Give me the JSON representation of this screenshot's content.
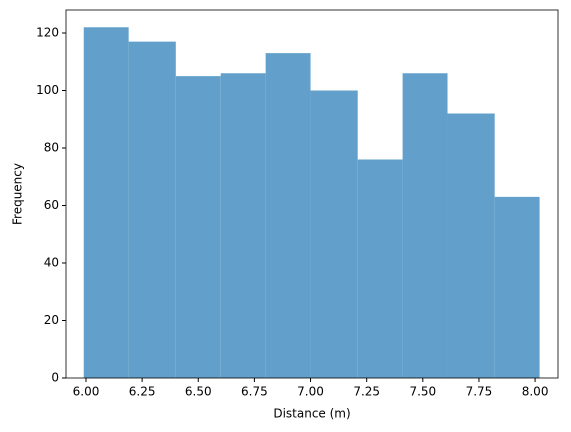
{
  "chart_data": {
    "type": "histogram",
    "xlabel": "Distance (m)",
    "ylabel": "Frequency",
    "bins": [
      5.99,
      6.19,
      6.4,
      6.6,
      6.8,
      7.0,
      7.21,
      7.41,
      7.61,
      7.82,
      8.02
    ],
    "values": [
      122,
      117,
      105,
      106,
      113,
      100,
      76,
      106,
      92,
      63
    ],
    "color": "#62a0cb",
    "xlim": [
      5.911,
      8.102
    ],
    "ylim": [
      0,
      128
    ],
    "xticks": [
      {
        "value": 6,
        "label": "6.00"
      },
      {
        "value": 6.25,
        "label": "6.25"
      },
      {
        "value": 6.5,
        "label": "6.50"
      },
      {
        "value": 6.75,
        "label": "6.75"
      },
      {
        "value": 7,
        "label": "7.00"
      },
      {
        "value": 7.25,
        "label": "7.25"
      },
      {
        "value": 7.5,
        "label": "7.50"
      },
      {
        "value": 7.75,
        "label": "7.75"
      },
      {
        "value": 8,
        "label": "8.00"
      }
    ],
    "yticks": [
      0,
      20,
      40,
      60,
      80,
      100,
      120
    ]
  }
}
